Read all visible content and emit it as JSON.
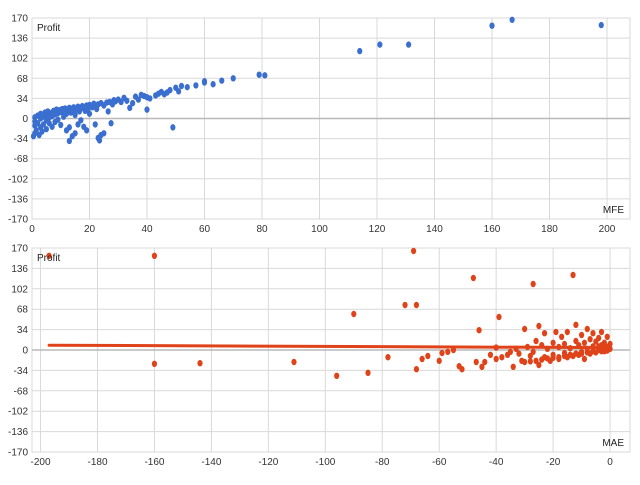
{
  "charts": [
    {
      "id": "mfe",
      "plot_bg": "#ffffff",
      "grid_color": "#d9d9d9",
      "zero_color": "#b8b8b8",
      "point_color": "#3a6fd0"
    },
    {
      "id": "mae",
      "plot_bg": "#ffffff",
      "grid_color": "#d9d9d9",
      "zero_color": "#b8b8b8",
      "point_color": "#e0431a",
      "trend_color": "#e0431a"
    }
  ],
  "chart_data": [
    {
      "type": "scatter",
      "title": "",
      "ylabel": "Profit",
      "xlabel": "MFE",
      "xlim": [
        0,
        208
      ],
      "ylim": [
        -170,
        170
      ],
      "grid": true,
      "xticks": [
        0,
        20,
        40,
        60,
        80,
        100,
        120,
        140,
        160,
        180,
        200
      ],
      "yticks": [
        170,
        136,
        102,
        68,
        34,
        0,
        -34,
        -68,
        -102,
        -136,
        -170
      ],
      "points": [
        [
          0.5,
          -30
        ],
        [
          1,
          -25
        ],
        [
          1,
          -12
        ],
        [
          1,
          -5
        ],
        [
          1,
          2
        ],
        [
          1.5,
          -20
        ],
        [
          2,
          -8
        ],
        [
          2,
          5
        ],
        [
          2.5,
          -28
        ],
        [
          3,
          -15
        ],
        [
          3,
          0
        ],
        [
          3,
          8
        ],
        [
          3.5,
          -22
        ],
        [
          4,
          -10
        ],
        [
          4,
          3
        ],
        [
          4.5,
          10
        ],
        [
          5,
          -18
        ],
        [
          5,
          -3
        ],
        [
          5,
          6
        ],
        [
          5.5,
          12
        ],
        [
          6,
          -8
        ],
        [
          6,
          2
        ],
        [
          6.5,
          9
        ],
        [
          7,
          -14
        ],
        [
          7,
          4
        ],
        [
          7.5,
          13
        ],
        [
          8,
          -6
        ],
        [
          8,
          7
        ],
        [
          8.5,
          15
        ],
        [
          9,
          -2
        ],
        [
          9,
          9
        ],
        [
          9.5,
          14
        ],
        [
          10,
          -11
        ],
        [
          10,
          11
        ],
        [
          10.5,
          16
        ],
        [
          11,
          3
        ],
        [
          11,
          12
        ],
        [
          11.5,
          17
        ],
        [
          12,
          -20
        ],
        [
          12,
          8
        ],
        [
          12.5,
          14
        ],
        [
          13,
          -38
        ],
        [
          13,
          -15
        ],
        [
          13,
          18
        ],
        [
          13.5,
          10
        ],
        [
          14,
          -30
        ],
        [
          14,
          12
        ],
        [
          14.5,
          19
        ],
        [
          15,
          -25
        ],
        [
          15,
          6
        ],
        [
          15.5,
          15
        ],
        [
          16,
          -10
        ],
        [
          16,
          20
        ],
        [
          16.5,
          12
        ],
        [
          17,
          -3
        ],
        [
          17,
          17
        ],
        [
          17.5,
          21
        ],
        [
          18,
          -14
        ],
        [
          18,
          18
        ],
        [
          18.5,
          13
        ],
        [
          19,
          -20
        ],
        [
          19,
          22
        ],
        [
          19.5,
          15
        ],
        [
          20,
          8
        ],
        [
          20,
          23
        ],
        [
          21,
          19
        ],
        [
          21.5,
          25
        ],
        [
          22,
          -10
        ],
        [
          22,
          21
        ],
        [
          22.5,
          16
        ],
        [
          23,
          24
        ],
        [
          23,
          -33
        ],
        [
          23.5,
          -37
        ],
        [
          24,
          -28
        ],
        [
          24,
          26
        ],
        [
          25,
          -25
        ],
        [
          25,
          22
        ],
        [
          26,
          27
        ],
        [
          26.5,
          12
        ],
        [
          27,
          28
        ],
        [
          27.5,
          -8
        ],
        [
          28,
          24
        ],
        [
          28.5,
          31
        ],
        [
          29,
          29
        ],
        [
          30,
          32
        ],
        [
          31,
          28
        ],
        [
          32,
          35
        ],
        [
          33,
          30
        ],
        [
          34,
          18
        ],
        [
          35,
          26
        ],
        [
          36,
          37
        ],
        [
          37,
          32
        ],
        [
          38,
          40
        ],
        [
          39,
          38
        ],
        [
          40,
          36
        ],
        [
          40,
          15
        ],
        [
          41,
          34
        ],
        [
          43,
          39
        ],
        [
          44,
          42
        ],
        [
          45,
          45
        ],
        [
          46,
          41
        ],
        [
          47,
          44
        ],
        [
          48,
          48
        ],
        [
          49,
          -15
        ],
        [
          50,
          52
        ],
        [
          51,
          46
        ],
        [
          52,
          55
        ],
        [
          54,
          53
        ],
        [
          57,
          56
        ],
        [
          60,
          63
        ],
        [
          60,
          61
        ],
        [
          63,
          58
        ],
        [
          66,
          64
        ],
        [
          70,
          68
        ],
        [
          79,
          74
        ],
        [
          81,
          73
        ],
        [
          114,
          114
        ],
        [
          121,
          125
        ],
        [
          131,
          125
        ],
        [
          160,
          157
        ],
        [
          167,
          167
        ],
        [
          198,
          158
        ]
      ],
      "trend": null
    },
    {
      "type": "scatter",
      "title": "",
      "ylabel": "Profit",
      "xlabel": "MAE",
      "xlim": [
        -203,
        7
      ],
      "ylim": [
        -170,
        170
      ],
      "grid": true,
      "xticks": [
        -200,
        -180,
        -160,
        -140,
        -120,
        -100,
        -80,
        -60,
        -40,
        -20,
        0
      ],
      "yticks": [
        170,
        136,
        102,
        68,
        34,
        0,
        -34,
        -68,
        -102,
        -136,
        -170
      ],
      "points": [
        [
          -197,
          157
        ],
        [
          -160,
          157
        ],
        [
          -160,
          -23
        ],
        [
          -144,
          -22
        ],
        [
          -111,
          -20
        ],
        [
          -96,
          -43
        ],
        [
          -90,
          60
        ],
        [
          -85,
          -38
        ],
        [
          -78,
          -12
        ],
        [
          -72,
          75
        ],
        [
          -69,
          165
        ],
        [
          -68,
          75
        ],
        [
          -68,
          -32
        ],
        [
          -66,
          -15
        ],
        [
          -64,
          -10
        ],
        [
          -60,
          -18
        ],
        [
          -59,
          -5
        ],
        [
          -57,
          -3
        ],
        [
          -55,
          0
        ],
        [
          -53,
          -27
        ],
        [
          -52,
          -32
        ],
        [
          -48,
          120
        ],
        [
          -47,
          -20
        ],
        [
          -46,
          33
        ],
        [
          -45,
          -28
        ],
        [
          -44,
          -20
        ],
        [
          -42,
          -8
        ],
        [
          -40,
          -15
        ],
        [
          -40,
          4
        ],
        [
          -39,
          55
        ],
        [
          -38,
          -12
        ],
        [
          -36,
          -8
        ],
        [
          -35,
          -3
        ],
        [
          -34,
          -28
        ],
        [
          -33,
          2
        ],
        [
          -32,
          -6
        ],
        [
          -31,
          -18
        ],
        [
          -30,
          35
        ],
        [
          -29,
          5
        ],
        [
          -28,
          -10
        ],
        [
          -27,
          110
        ],
        [
          -27,
          -3
        ],
        [
          -26,
          15
        ],
        [
          -25,
          -25
        ],
        [
          -25,
          40
        ],
        [
          -24,
          8
        ],
        [
          -23,
          -12
        ],
        [
          -23,
          28
        ],
        [
          -22,
          2
        ],
        [
          -21,
          -18
        ],
        [
          -20,
          12
        ],
        [
          -20,
          -8
        ],
        [
          -19,
          30
        ],
        [
          -18,
          -15
        ],
        [
          -18,
          5
        ],
        [
          -17,
          22
        ],
        [
          -16,
          -5
        ],
        [
          -16,
          10
        ],
        [
          -15,
          -12
        ],
        [
          -15,
          30
        ],
        [
          -14,
          3
        ],
        [
          -13,
          125
        ],
        [
          -13,
          -10
        ],
        [
          -12,
          15
        ],
        [
          -12,
          42
        ],
        [
          -11,
          -8
        ],
        [
          -11,
          8
        ],
        [
          -10,
          25
        ],
        [
          -10,
          -3
        ],
        [
          -9,
          12
        ],
        [
          -9,
          -15
        ],
        [
          -8,
          35
        ],
        [
          -8,
          2
        ],
        [
          -7,
          18
        ],
        [
          -7,
          -6
        ],
        [
          -6,
          28
        ],
        [
          -6,
          6
        ],
        [
          -5,
          -4
        ],
        [
          -5,
          14
        ],
        [
          -4,
          20
        ],
        [
          -4,
          0
        ],
        [
          -3,
          8
        ],
        [
          -3,
          30
        ],
        [
          -2,
          -2
        ],
        [
          -2,
          12
        ],
        [
          -1,
          5
        ],
        [
          -1,
          22
        ],
        [
          0,
          2
        ],
        [
          0,
          10
        ],
        [
          -1,
          -1
        ],
        [
          -2,
          3
        ],
        [
          -3,
          -2
        ],
        [
          -4,
          6
        ],
        [
          -6,
          -2
        ],
        [
          -8,
          -4
        ],
        [
          -10,
          -6
        ],
        [
          -12,
          -6
        ],
        [
          -14,
          -8
        ],
        [
          -16,
          -10
        ],
        [
          -18,
          -12
        ],
        [
          -20,
          -13
        ],
        [
          -22,
          -14
        ],
        [
          -24,
          -16
        ],
        [
          -26,
          -18
        ],
        [
          -28,
          -19
        ],
        [
          -30,
          -20
        ]
      ],
      "trend": [
        [
          -197,
          8
        ],
        [
          -2,
          4
        ]
      ]
    }
  ]
}
